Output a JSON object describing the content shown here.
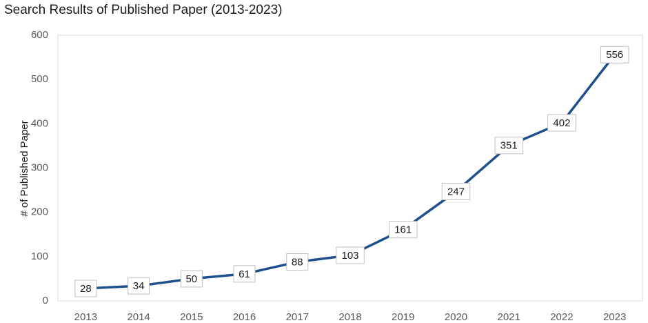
{
  "chart_data": {
    "type": "line",
    "title": "Search Results of Published Paper (2013-2023)",
    "xlabel": "",
    "ylabel": "# of Published Paper",
    "categories": [
      "2013",
      "2014",
      "2015",
      "2016",
      "2017",
      "2018",
      "2019",
      "2020",
      "2021",
      "2022",
      "2023"
    ],
    "values": [
      28,
      34,
      50,
      61,
      88,
      103,
      161,
      247,
      351,
      402,
      556
    ],
    "ylim": [
      0,
      600
    ],
    "yticks": [
      0,
      100,
      200,
      300,
      400,
      500,
      600
    ],
    "grid": false,
    "legend": "none",
    "line_color": "#1f4e8c",
    "data_labels": true
  }
}
